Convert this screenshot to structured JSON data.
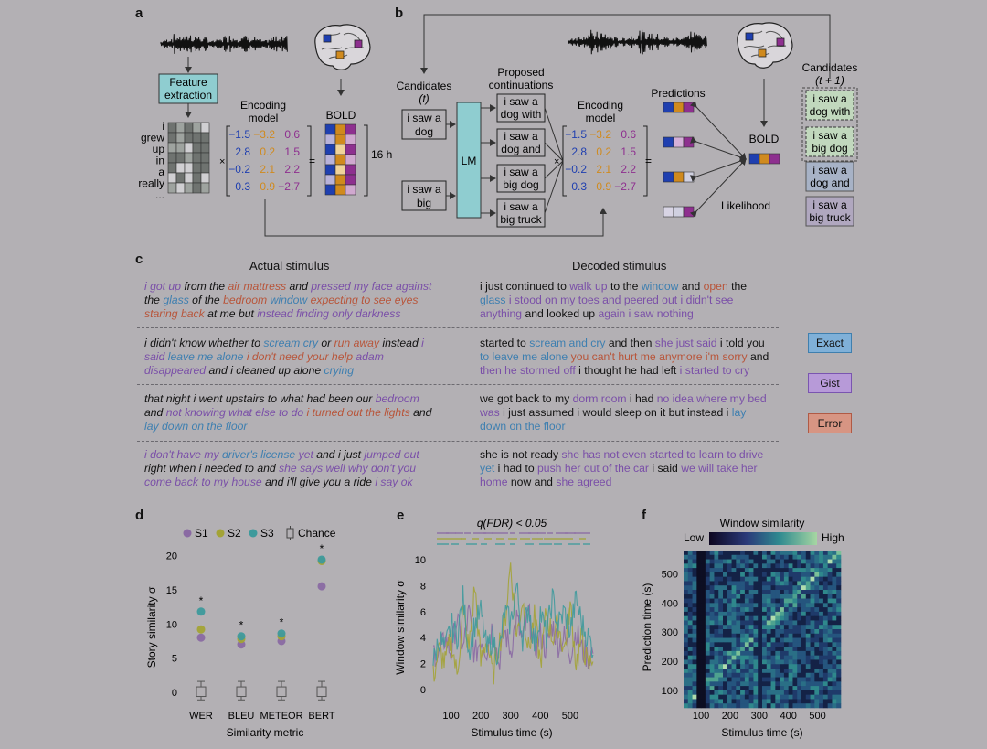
{
  "panels": {
    "a": "a",
    "b": "b",
    "c": "c",
    "d": "d",
    "e": "e",
    "f": "f"
  },
  "a": {
    "feature_extraction_line1": "Feature",
    "feature_extraction_line2": "extraction",
    "words": [
      "i",
      "grew",
      "up",
      "in",
      "a",
      "really",
      "..."
    ],
    "encoding_model_line1": "Encoding",
    "encoding_model_line2": "model",
    "matrix": [
      [
        "−1.5",
        "−3.2",
        "0.6"
      ],
      [
        "2.8",
        "0.2",
        "1.5"
      ],
      [
        "−0.2",
        "2.1",
        "2.2"
      ],
      [
        "0.3",
        "0.9",
        "−2.7"
      ]
    ],
    "times": "×",
    "equals": "=",
    "bold": "BOLD",
    "duration": "16 h"
  },
  "b": {
    "candidates_t_line1": "Candidates",
    "candidates_t_line2": "(t)",
    "cand1": [
      "i saw a",
      "dog"
    ],
    "cand2": [
      "i saw a",
      "big"
    ],
    "lm": "LM",
    "proposed_line1": "Proposed",
    "proposed_line2": "continuations",
    "continuations": [
      [
        "i saw a",
        "dog with"
      ],
      [
        "i saw a",
        "dog and"
      ],
      [
        "i saw a",
        "big dog"
      ],
      [
        "i saw a",
        "big truck"
      ]
    ],
    "encoding_model_line1": "Encoding",
    "encoding_model_line2": "model",
    "matrix": [
      [
        "−1.5",
        "−3.2",
        "0.6"
      ],
      [
        "2.8",
        "0.2",
        "1.5"
      ],
      [
        "−0.2",
        "2.1",
        "2.2"
      ],
      [
        "0.3",
        "0.9",
        "−2.7"
      ]
    ],
    "times": "×",
    "equals": "=",
    "predictions": "Predictions",
    "bold": "BOLD",
    "likelihood": "Likelihood",
    "candidates_t1_line1": "Candidates",
    "candidates_t1_line2": "(t + 1)",
    "next": [
      [
        "i saw a",
        "dog with"
      ],
      [
        "i saw a",
        "big dog"
      ],
      [
        "i saw a",
        "dog and"
      ],
      [
        "i saw a",
        "big truck"
      ]
    ]
  },
  "c": {
    "actual_header": "Actual stimulus",
    "decoded_header": "Decoded stimulus",
    "legend": {
      "exact": "Exact",
      "gist": "Gist",
      "error": "Error"
    },
    "rows": [
      {
        "actual": [
          [
            [
              "g",
              "i got up"
            ],
            [
              "n",
              " from the "
            ],
            [
              "r",
              "air mattress"
            ],
            [
              "n",
              " and "
            ],
            [
              "g",
              "pressed my face against"
            ]
          ],
          [
            [
              "n",
              "the "
            ],
            [
              "e",
              "glass"
            ],
            [
              "n",
              " of the "
            ],
            [
              "r",
              "bedroom"
            ],
            [
              "n",
              " "
            ],
            [
              "e",
              "window"
            ],
            [
              "n",
              " "
            ],
            [
              "r",
              "expecting to see eyes"
            ]
          ],
          [
            [
              "r",
              "staring back"
            ],
            [
              "n",
              " at me but "
            ],
            [
              "g",
              "instead finding only darkness"
            ]
          ]
        ],
        "decoded": [
          [
            [
              "n",
              "i just continued to "
            ],
            [
              "g",
              "walk up"
            ],
            [
              "n",
              " to the "
            ],
            [
              "e",
              "window"
            ],
            [
              "n",
              " and "
            ],
            [
              "r",
              "open"
            ],
            [
              "n",
              " the"
            ]
          ],
          [
            [
              "e",
              "glass"
            ],
            [
              "g",
              " i stood on my toes and peered out i didn't see"
            ]
          ],
          [
            [
              "g",
              "anything"
            ],
            [
              "n",
              " and looked up "
            ],
            [
              "g",
              "again i saw nothing"
            ]
          ]
        ]
      },
      {
        "actual": [
          [
            [
              "n",
              "i didn't know whether to "
            ],
            [
              "e",
              "scream cry"
            ],
            [
              "n",
              " or "
            ],
            [
              "r",
              "run away"
            ],
            [
              "n",
              " instead "
            ],
            [
              "g",
              "i"
            ]
          ],
          [
            [
              "g",
              "said "
            ],
            [
              "e",
              "leave me alone"
            ],
            [
              "n",
              " "
            ],
            [
              "r",
              "i don't need your help"
            ],
            [
              "n",
              " "
            ],
            [
              "g",
              "adam"
            ]
          ],
          [
            [
              "g",
              "disappeared"
            ],
            [
              "n",
              " and i cleaned up alone "
            ],
            [
              "e",
              "crying"
            ]
          ]
        ],
        "decoded": [
          [
            [
              "n",
              "started to "
            ],
            [
              "e",
              "scream and cry"
            ],
            [
              "n",
              " and then "
            ],
            [
              "g",
              "she just said"
            ],
            [
              "n",
              " i told you"
            ]
          ],
          [
            [
              "e",
              "to leave me alone"
            ],
            [
              "n",
              " "
            ],
            [
              "r",
              "you can't hurt me anymore i'm sorry"
            ],
            [
              "n",
              " and"
            ]
          ],
          [
            [
              "g",
              "then he stormed off"
            ],
            [
              "n",
              " i thought he had left "
            ],
            [
              "g",
              "i started to cry"
            ]
          ]
        ]
      },
      {
        "actual": [
          [
            [
              "n",
              "that night i went upstairs to what had been our "
            ],
            [
              "g",
              "bedroom"
            ]
          ],
          [
            [
              "n",
              "and "
            ],
            [
              "g",
              "not knowing what else to do"
            ],
            [
              "n",
              " "
            ],
            [
              "r",
              "i turned out the lights"
            ],
            [
              "n",
              " and"
            ]
          ],
          [
            [
              "e",
              "lay down on the floor"
            ]
          ]
        ],
        "decoded": [
          [
            [
              "n",
              "we got back to my "
            ],
            [
              "g",
              "dorm room"
            ],
            [
              "n",
              " i had "
            ],
            [
              "g",
              "no idea where my bed"
            ]
          ],
          [
            [
              "g",
              "was"
            ],
            [
              "n",
              " i just assumed i would sleep on it but instead i "
            ],
            [
              "e",
              "lay"
            ]
          ],
          [
            [
              "e",
              "down on the floor"
            ]
          ]
        ]
      },
      {
        "actual": [
          [
            [
              "g",
              "i don't have my "
            ],
            [
              "e",
              "driver's license"
            ],
            [
              "n",
              " "
            ],
            [
              "g",
              "yet"
            ],
            [
              "n",
              " and i just "
            ],
            [
              "g",
              "jumped out"
            ]
          ],
          [
            [
              "n",
              "right when i needed to and "
            ],
            [
              "g",
              "she says well why don't you"
            ]
          ],
          [
            [
              "g",
              "come back to my house"
            ],
            [
              "n",
              " and i'll give you a ride "
            ],
            [
              "g",
              "i say ok"
            ]
          ]
        ],
        "decoded": [
          [
            [
              "n",
              "she is not ready "
            ],
            [
              "g",
              "she has not even started to learn to drive"
            ]
          ],
          [
            [
              "e",
              "yet"
            ],
            [
              "n",
              " i had to "
            ],
            [
              "g",
              "push her out of the car"
            ],
            [
              "n",
              " i said "
            ],
            [
              "g",
              "we will take her"
            ]
          ],
          [
            [
              "g",
              "home"
            ],
            [
              "n",
              " now and "
            ],
            [
              "g",
              "she agreed"
            ]
          ]
        ]
      }
    ]
  },
  "d": {
    "legend": {
      "s1": "S1",
      "s2": "S2",
      "s3": "S3",
      "chance": "Chance"
    },
    "ylabel": "Story similarity σ",
    "xlabel": "Similarity metric",
    "asterisk": "*"
  },
  "e": {
    "title": "q(FDR) < 0.05",
    "ylabel": "Window similarity σ",
    "xlabel": "Stimulus time (s)"
  },
  "f": {
    "colorbar_title": "Window similarity",
    "low": "Low",
    "high": "High",
    "ylabel": "Prediction time (s)",
    "xlabel": "Stimulus time (s)"
  },
  "colors": {
    "s1": "#8a6aa3",
    "s2": "#a3a336",
    "s3": "#3e9a9c",
    "exact": "#4f8fbe",
    "gist": "#8f6cc2",
    "error": "#c46a57",
    "blue": "#1f3fb0",
    "orange": "#d08a1e",
    "purple": "#8e2f8f"
  },
  "chart_data": [
    {
      "type": "scatter",
      "categories": [
        "WER",
        "BLEU",
        "METEOR",
        "BERT"
      ],
      "series": [
        {
          "name": "S1",
          "values": [
            8.0,
            7.0,
            7.5,
            15.5
          ]
        },
        {
          "name": "S2",
          "values": [
            9.2,
            7.8,
            8.2,
            19.2
          ]
        },
        {
          "name": "S3",
          "values": [
            11.8,
            8.2,
            8.6,
            19.4
          ]
        }
      ],
      "chance": {
        "median": [
          0,
          0,
          0,
          0
        ],
        "q1": [
          -0.6,
          -0.6,
          -0.6,
          -0.6
        ],
        "q3": [
          0.8,
          0.8,
          0.8,
          0.8
        ],
        "min": [
          -1.1,
          -1.1,
          -1.1,
          -1.1
        ],
        "max": [
          1.6,
          1.6,
          1.6,
          1.6
        ]
      },
      "significant": [
        true,
        true,
        true,
        true
      ],
      "yticks": [
        0,
        5,
        10,
        15,
        20
      ],
      "ylim": [
        -2,
        21
      ],
      "xlabel": "Similarity metric",
      "ylabel": "Story similarity σ"
    },
    {
      "type": "line",
      "xticks": [
        100,
        200,
        300,
        400,
        500
      ],
      "yticks": [
        0,
        2,
        4,
        6,
        8,
        10
      ],
      "xlim": [
        40,
        580
      ],
      "ylim": [
        -1,
        10.5
      ],
      "series": [
        {
          "name": "S1",
          "x": [
            40,
            60,
            80,
            100,
            120,
            140,
            160,
            180,
            200,
            220,
            240,
            260,
            280,
            300,
            320,
            340,
            360,
            380,
            400,
            420,
            440,
            460,
            480,
            500,
            520,
            540,
            560,
            580
          ],
          "values": [
            3,
            2.5,
            4,
            2.8,
            5.5,
            3,
            6,
            2.5,
            4,
            3,
            5,
            2,
            4.5,
            3,
            5.5,
            3.5,
            6,
            3,
            4.2,
            3,
            5,
            3.5,
            4,
            2.8,
            4.5,
            3,
            2.5,
            3
          ]
        },
        {
          "name": "S2",
          "x": [
            40,
            60,
            80,
            100,
            120,
            140,
            160,
            180,
            200,
            220,
            240,
            260,
            280,
            300,
            320,
            340,
            360,
            380,
            400,
            420,
            440,
            460,
            480,
            500,
            520,
            540,
            560,
            580
          ],
          "values": [
            1,
            3,
            2,
            4,
            1,
            6,
            3,
            8,
            2,
            4,
            1,
            3.5,
            5,
            9.8,
            4,
            7,
            3,
            5.5,
            2,
            6,
            4,
            5,
            3,
            6.5,
            2,
            4,
            1.5,
            3
          ]
        },
        {
          "name": "S3",
          "x": [
            40,
            60,
            80,
            100,
            120,
            140,
            160,
            180,
            200,
            220,
            240,
            260,
            280,
            300,
            320,
            340,
            360,
            380,
            400,
            420,
            440,
            460,
            480,
            500,
            520,
            540,
            560,
            580
          ],
          "values": [
            2,
            4,
            3,
            5,
            4,
            7,
            3,
            5,
            6,
            3,
            4,
            2.5,
            6,
            5,
            8,
            4,
            6.5,
            3.5,
            6,
            4,
            7,
            5,
            6,
            4.5,
            7,
            5,
            4,
            3
          ]
        }
      ],
      "xlabel": "Stimulus time (s)",
      "ylabel": "Window similarity σ"
    },
    {
      "type": "heatmap",
      "xticks": [
        100,
        200,
        300,
        400,
        500
      ],
      "yticks": [
        100,
        200,
        300,
        400,
        500
      ],
      "xlim": [
        40,
        580
      ],
      "ylim": [
        40,
        580
      ],
      "colorbar": [
        "Low",
        "High"
      ],
      "xlabel": "Stimulus time (s)",
      "ylabel": "Prediction time (s)"
    }
  ]
}
